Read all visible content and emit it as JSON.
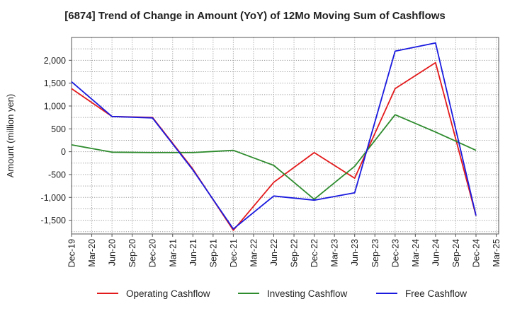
{
  "chart_data": {
    "type": "line",
    "title": "[6874]  Trend of Change in Amount (YoY) of 12Mo Moving Sum of Cashflows",
    "xlabel": "",
    "ylabel": "Amount (million yen)",
    "ylim": [
      -1800,
      2500
    ],
    "yticks": [
      2000,
      1500,
      1000,
      500,
      0,
      -500,
      -1000,
      -1500
    ],
    "ytick_labels": [
      "2,000",
      "1,500",
      "1,000",
      "500",
      "0",
      "-500",
      "-1,000",
      "-1,500"
    ],
    "categories": [
      "Dec-19",
      "Mar-20",
      "Jun-20",
      "Sep-20",
      "Dec-20",
      "Mar-21",
      "Jun-21",
      "Sep-21",
      "Dec-21",
      "Mar-22",
      "Jun-22",
      "Sep-22",
      "Dec-22",
      "Mar-23",
      "Jun-23",
      "Sep-23",
      "Dec-23",
      "Mar-24",
      "Jun-24",
      "Sep-24",
      "Dec-24",
      "Mar-25"
    ],
    "grid": true,
    "legend_position": "bottom",
    "series": [
      {
        "name": "Operating Cashflow",
        "color": "#e31a1c",
        "values": [
          1380,
          null,
          770,
          null,
          750,
          null,
          -380,
          null,
          -1720,
          null,
          -670,
          null,
          -20,
          null,
          -580,
          null,
          1380,
          null,
          1950,
          null,
          -1400,
          null
        ]
      },
      {
        "name": "Investing Cashflow",
        "color": "#2e8b2e",
        "values": [
          150,
          null,
          -10,
          null,
          -20,
          null,
          -20,
          null,
          30,
          null,
          -300,
          null,
          -1040,
          null,
          -320,
          null,
          810,
          null,
          430,
          null,
          30,
          null
        ]
      },
      {
        "name": "Free Cashflow",
        "color": "#1a1adf",
        "values": [
          1530,
          null,
          770,
          null,
          740,
          null,
          -400,
          null,
          -1690,
          null,
          -970,
          null,
          -1060,
          null,
          -900,
          null,
          2200,
          null,
          2380,
          null,
          -1400,
          null
        ]
      }
    ]
  }
}
